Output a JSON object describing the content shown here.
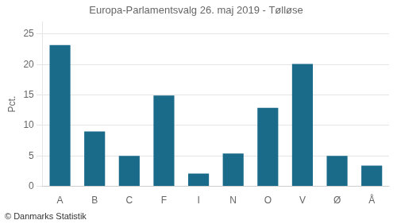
{
  "chart_data": {
    "type": "bar",
    "title": "Europa-Parlamentsvalg 26. maj 2019 - Tølløse",
    "categories": [
      "A",
      "B",
      "C",
      "F",
      "I",
      "N",
      "O",
      "V",
      "Ø",
      "Å"
    ],
    "values": [
      23.2,
      9.0,
      5.0,
      14.9,
      2.1,
      5.4,
      12.9,
      20.1,
      5.0,
      3.4
    ],
    "color": "#1a6b8a",
    "ylabel": "Pct.",
    "ylim": [
      0,
      27
    ],
    "yticks": [
      0,
      5,
      10,
      15,
      20,
      25
    ],
    "grid": true,
    "annotations": [
      "© Danmarks Statistik"
    ]
  }
}
